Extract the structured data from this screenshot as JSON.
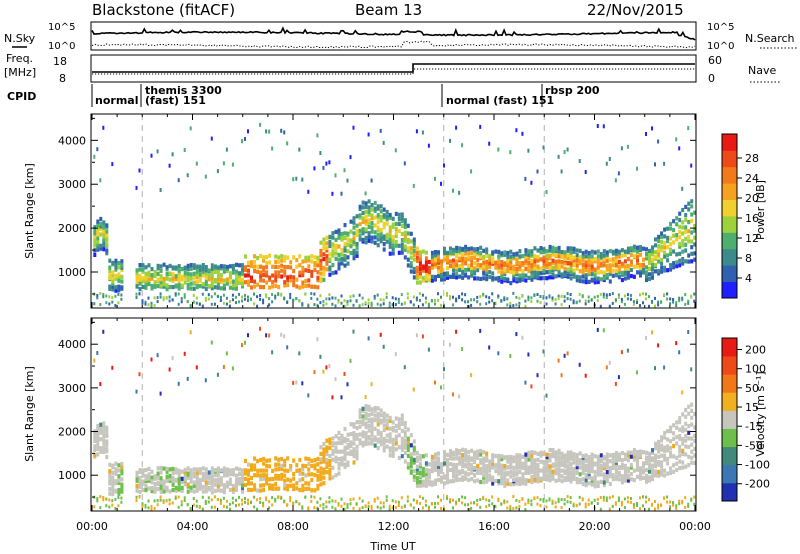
{
  "header": {
    "radar": "Blackstone (fitACF)",
    "beam": "Beam 13",
    "date": "22/Nov/2015"
  },
  "panels": {
    "nsky": {
      "label": "N.Sky",
      "tick_top": "10^5",
      "tick_bottom": "10^0"
    },
    "nsearch": {
      "label": "N.Search",
      "tick_top": "10^5",
      "tick_bottom": "10^0"
    },
    "freq": {
      "label_top": "Freq.",
      "label_unit": "[MHz]",
      "ticks": [
        "18",
        "8"
      ]
    },
    "nave": {
      "label": "Nave",
      "ticks": [
        "60",
        "0"
      ]
    },
    "cpid": {
      "label": "CPID",
      "entries": [
        {
          "text": "normal",
          "row": 2
        },
        {
          "text": "themis 3300",
          "row": 1
        },
        {
          "text": "(fast) 151",
          "row": 2
        },
        {
          "text": "normal (fast) 151",
          "row": 2
        },
        {
          "text": "rbsp 200",
          "row": 1
        }
      ]
    }
  },
  "chart_data": [
    {
      "type": "heatmap",
      "name": "Power",
      "ylabel": "Slant Range [km]",
      "xlim": [
        0,
        24
      ],
      "ylim": [
        180,
        4600
      ],
      "yticks": [
        "1000",
        "2000",
        "3000",
        "4000"
      ],
      "colorbar_label": "Power [dB]",
      "colorbar_ticks": [
        "4",
        "8",
        "12",
        "16",
        "20",
        "24",
        "28"
      ],
      "colorbar_colors": [
        "#1f1fff",
        "#3060b0",
        "#3d8a8c",
        "#4caf6e",
        "#9ed23c",
        "#f1cf2c",
        "#f7a21e",
        "#f27a1c",
        "#ee4a18",
        "#e81a14"
      ],
      "mode_change_lines_h": [
        2.0,
        14.0,
        18.0
      ]
    },
    {
      "type": "heatmap",
      "name": "Velocity",
      "ylabel": "Slant Range [km]",
      "xlim": [
        0,
        24
      ],
      "ylim": [
        180,
        4600
      ],
      "yticks": [
        "1000",
        "2000",
        "3000",
        "4000"
      ],
      "colorbar_label": "Velocity [m s⁻¹]",
      "colorbar_ticks": [
        "200",
        "100",
        "50",
        "15",
        "-15",
        "-50",
        "-100",
        "-200"
      ],
      "colorbar_colors": [
        "#2030b0",
        "#3a78b5",
        "#3f8a7a",
        "#6cc04a",
        "#c6c6be",
        "#f0b020",
        "#f07818",
        "#ee4a18",
        "#e81a14"
      ],
      "mode_change_lines_h": [
        2.0,
        14.0,
        18.0
      ]
    }
  ],
  "xaxis": {
    "label": "Time UT",
    "ticks": [
      "00:00",
      "04:00",
      "08:00",
      "12:00",
      "16:00",
      "20:00",
      "00:00"
    ]
  },
  "colors": {
    "gray_scatter": "#c6c6be",
    "orange": "#f2a91a",
    "green": "#6cc04a",
    "dashed": "#b0b0b0"
  }
}
